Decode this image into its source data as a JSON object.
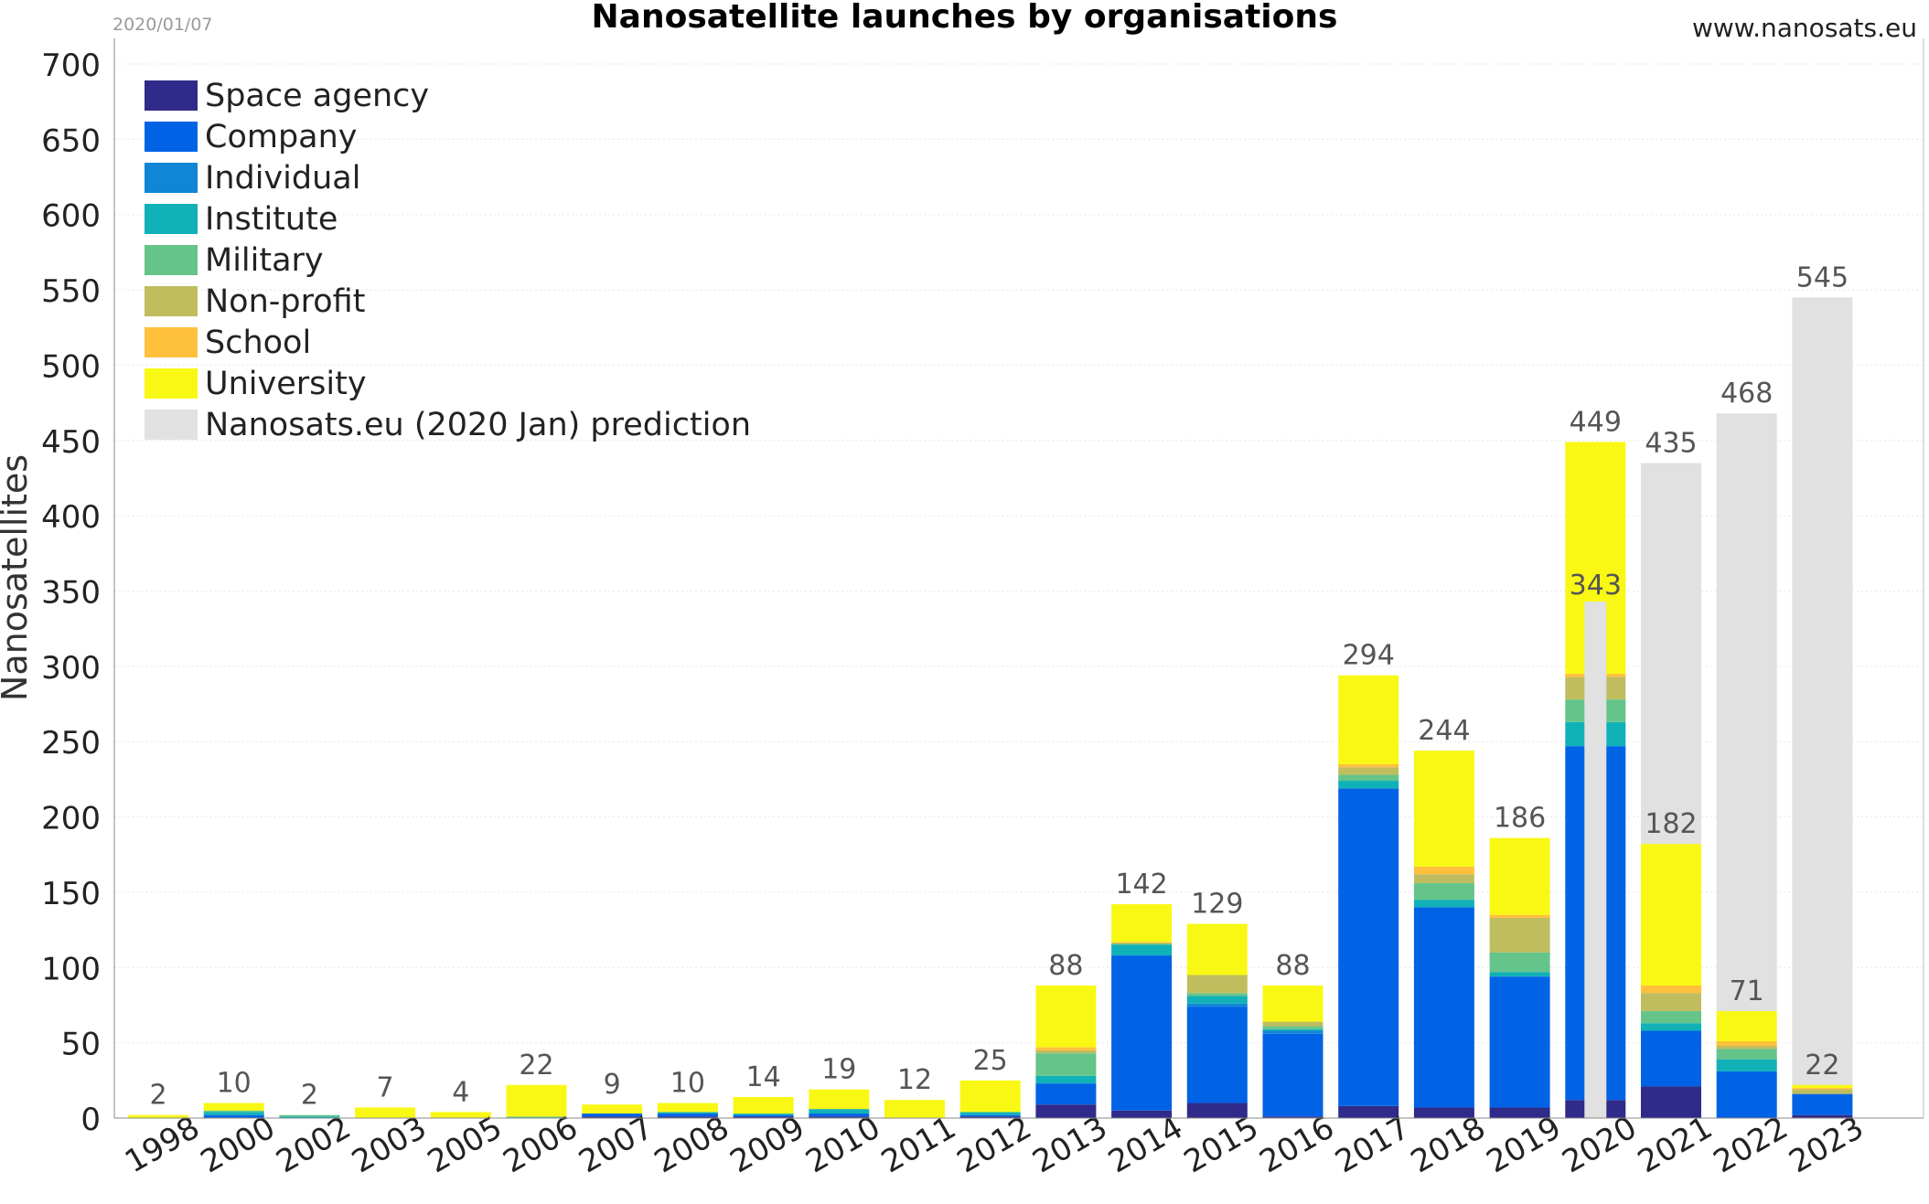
{
  "header": {
    "date": "2020/01/07",
    "title": "Nanosatellite launches by organisations",
    "site": "www.nanosats.eu"
  },
  "chart_data": {
    "type": "bar",
    "stacked": true,
    "title": "Nanosatellite launches by organisations",
    "ylabel": "Nanosatellites",
    "xlabel": "",
    "ylim": [
      0,
      700
    ],
    "yticks": [
      0,
      50,
      100,
      150,
      200,
      250,
      300,
      350,
      400,
      450,
      500,
      550,
      600,
      650,
      700
    ],
    "grid": true,
    "legend_position": "top-left",
    "categories": [
      "1998",
      "2000",
      "2002",
      "2003",
      "2005",
      "2006",
      "2007",
      "2008",
      "2009",
      "2010",
      "2011",
      "2012",
      "2013",
      "2014",
      "2015",
      "2016",
      "2017",
      "2018",
      "2019",
      "2020",
      "2021",
      "2022",
      "2023"
    ],
    "series": [
      {
        "name": "Space agency",
        "color": "#302a8a",
        "values": [
          0,
          0,
          0,
          0,
          0,
          0,
          1,
          1,
          1,
          1,
          0,
          1,
          9,
          5,
          10,
          1,
          8,
          7,
          7,
          12,
          21,
          0,
          2
        ]
      },
      {
        "name": "Company",
        "color": "#0063e6",
        "values": [
          0,
          2,
          0,
          0,
          0,
          0,
          2,
          2,
          1,
          2,
          0,
          1,
          14,
          103,
          64,
          55,
          211,
          133,
          87,
          235,
          37,
          31,
          14
        ]
      },
      {
        "name": "Individual",
        "color": "#1186d6",
        "values": [
          0,
          0,
          0,
          0,
          0,
          0,
          0,
          0,
          0,
          0,
          0,
          0,
          0,
          0,
          2,
          2,
          0,
          0,
          0,
          0,
          0,
          0,
          0
        ]
      },
      {
        "name": "Institute",
        "color": "#11b1b8",
        "values": [
          0,
          2,
          1,
          0,
          0,
          0,
          0,
          1,
          1,
          3,
          0,
          2,
          5,
          7,
          5,
          1,
          5,
          5,
          3,
          16,
          5,
          8,
          0
        ]
      },
      {
        "name": "Military",
        "color": "#64c48a",
        "values": [
          0,
          1,
          1,
          0,
          0,
          1,
          0,
          0,
          0,
          0,
          0,
          0,
          15,
          1,
          2,
          2,
          4,
          11,
          13,
          15,
          8,
          7,
          0
        ]
      },
      {
        "name": "Non-profit",
        "color": "#c0bd5e",
        "values": [
          0,
          0,
          0,
          0,
          0,
          0,
          0,
          0,
          0,
          0,
          0,
          0,
          2,
          0,
          12,
          3,
          5,
          6,
          23,
          15,
          12,
          2,
          3
        ]
      },
      {
        "name": "School",
        "color": "#ffc03c",
        "values": [
          0,
          0,
          0,
          0,
          0,
          0,
          0,
          0,
          0,
          0,
          0,
          0,
          2,
          1,
          0,
          0,
          2,
          5,
          2,
          2,
          5,
          3,
          1
        ]
      },
      {
        "name": "University",
        "color": "#f9f814",
        "values": [
          2,
          5,
          0,
          7,
          4,
          21,
          6,
          6,
          11,
          13,
          12,
          21,
          41,
          25,
          34,
          24,
          59,
          77,
          51,
          154,
          94,
          20,
          2
        ]
      }
    ],
    "totals": [
      2,
      10,
      2,
      7,
      4,
      22,
      9,
      10,
      14,
      19,
      12,
      25,
      88,
      142,
      129,
      88,
      294,
      244,
      186,
      449,
      182,
      71,
      22
    ],
    "prediction": {
      "name": "Nanosats.eu (2020 Jan) prediction",
      "color": "#e1e1e1",
      "points": [
        {
          "category": "2020",
          "value": 343
        },
        {
          "category": "2021",
          "value": 435
        },
        {
          "category": "2022",
          "value": 468
        },
        {
          "category": "2023",
          "value": 545
        }
      ]
    }
  }
}
